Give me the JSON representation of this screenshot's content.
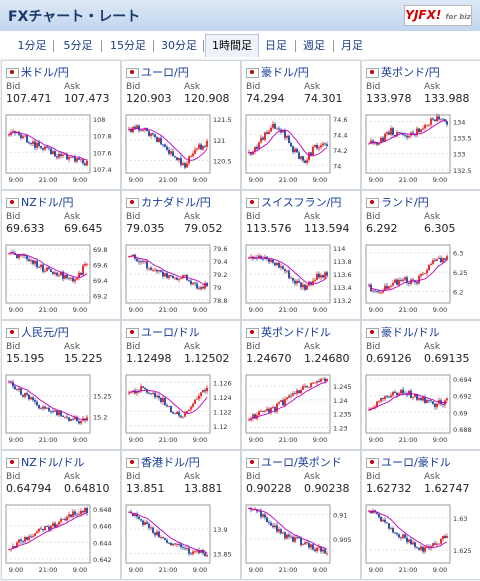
{
  "header": {
    "title": "FXチャート・レート",
    "logo_text": "YJFX!",
    "logo_sub": "for biz"
  },
  "tabs": [
    {
      "label": "1分足",
      "active": false
    },
    {
      "label": "5分足",
      "active": false
    },
    {
      "label": "15分足",
      "active": false
    },
    {
      "label": "30分足",
      "active": false
    },
    {
      "label": "1時間足",
      "active": true
    },
    {
      "label": "日足",
      "active": false
    },
    {
      "label": "週足",
      "active": false
    },
    {
      "label": "月足",
      "active": false
    }
  ],
  "labels": {
    "bid": "Bid",
    "ask": "Ask"
  },
  "colors": {
    "up": "#e00000",
    "down": "#002a8f",
    "ma": "#c000c0",
    "ma2": "#1a9cc0"
  },
  "pairs": [
    {
      "name": "米ドル/円",
      "bid": "107.471",
      "ask": "107.473",
      "yticks": [
        "108",
        "107.8",
        "107.6",
        "107.4"
      ],
      "xticks": [
        "9:00",
        "21:00",
        "9:00"
      ],
      "trend": [
        107.85,
        107.8,
        107.72,
        107.65,
        107.58,
        107.55,
        107.52,
        107.47
      ],
      "yrange": [
        107.35,
        108.05
      ]
    },
    {
      "name": "ユーロ/円",
      "bid": "120.903",
      "ask": "120.908",
      "yticks": [
        "121.5",
        "121",
        "120.5"
      ],
      "xticks": [
        "9:00",
        "21:00",
        "9:00"
      ],
      "trend": [
        121.2,
        121.3,
        121.1,
        120.9,
        120.6,
        120.4,
        120.8,
        120.9
      ],
      "yrange": [
        120.2,
        121.6
      ]
    },
    {
      "name": "豪ドル/円",
      "bid": "74.294",
      "ask": "74.301",
      "yticks": [
        "74.6",
        "74.4",
        "74.2",
        "74"
      ],
      "xticks": [
        "9:00",
        "21:00",
        "9:00"
      ],
      "trend": [
        74.15,
        74.3,
        74.5,
        74.45,
        74.2,
        74.05,
        74.25,
        74.29
      ],
      "yrange": [
        73.9,
        74.65
      ]
    },
    {
      "name": "英ポンド/円",
      "bid": "133.978",
      "ask": "133.988",
      "yticks": [
        "134",
        "133.5",
        "133",
        "132.5"
      ],
      "xticks": [
        "9:00",
        "21:00",
        "9:00"
      ],
      "trend": [
        133.3,
        133.4,
        133.7,
        133.5,
        133.6,
        133.9,
        134.1,
        133.98
      ],
      "yrange": [
        132.4,
        134.2
      ]
    },
    {
      "name": "NZドル/円",
      "bid": "69.633",
      "ask": "69.645",
      "yticks": [
        "69.8",
        "69.6",
        "69.4",
        "69.2"
      ],
      "xticks": [
        "9:00",
        "21:00",
        "9:00"
      ],
      "trend": [
        69.75,
        69.7,
        69.65,
        69.55,
        69.5,
        69.45,
        69.4,
        69.63
      ],
      "yrange": [
        69.1,
        69.85
      ]
    },
    {
      "name": "カナダドル/円",
      "bid": "79.035",
      "ask": "79.052",
      "yticks": [
        "79.6",
        "79.4",
        "79.2",
        "79",
        "78.8"
      ],
      "xticks": [
        "9:00",
        "21:00",
        "9:00"
      ],
      "trend": [
        79.5,
        79.4,
        79.3,
        79.2,
        79.1,
        79.15,
        79.0,
        79.03
      ],
      "yrange": [
        78.75,
        79.65
      ]
    },
    {
      "name": "スイスフラン/円",
      "bid": "113.576",
      "ask": "113.594",
      "yticks": [
        "114",
        "113.8",
        "113.6",
        "113.4",
        "113.2"
      ],
      "xticks": [
        "9:00",
        "21:00",
        "9:00"
      ],
      "trend": [
        113.9,
        113.85,
        113.8,
        113.7,
        113.5,
        113.4,
        113.55,
        113.58
      ],
      "yrange": [
        113.15,
        114.05
      ]
    },
    {
      "name": "ランド/円",
      "bid": "6.292",
      "ask": "6.305",
      "yticks": [
        "6.3",
        "6.25",
        "6.2"
      ],
      "xticks": [
        "9:00",
        "21:00",
        "9:00"
      ],
      "trend": [
        6.21,
        6.2,
        6.22,
        6.23,
        6.22,
        6.25,
        6.28,
        6.29
      ],
      "yrange": [
        6.17,
        6.32
      ]
    },
    {
      "name": "人民元/円",
      "bid": "15.195",
      "ask": "15.225",
      "yticks": [
        "15.25",
        "15.2"
      ],
      "xticks": [
        "9:00",
        "21:00",
        "9:00"
      ],
      "trend": [
        15.28,
        15.26,
        15.24,
        15.22,
        15.21,
        15.2,
        15.19,
        15.195
      ],
      "yrange": [
        15.16,
        15.3
      ]
    },
    {
      "name": "ユーロ/ドル",
      "bid": "1.12498",
      "ask": "1.12502",
      "yticks": [
        "1.126",
        "1.124",
        "1.122",
        "1.12"
      ],
      "xticks": [
        "9:00",
        "21:00",
        "9:00"
      ],
      "trend": [
        1.1245,
        1.125,
        1.1245,
        1.1235,
        1.122,
        1.1215,
        1.124,
        1.125
      ],
      "yrange": [
        1.119,
        1.127
      ]
    },
    {
      "name": "英ポンド/ドル",
      "bid": "1.24670",
      "ask": "1.24680",
      "yticks": [
        "1.245",
        "1.24",
        "1.235",
        "1.23"
      ],
      "xticks": [
        "9:00",
        "21:00",
        "9:00"
      ],
      "trend": [
        1.233,
        1.235,
        1.236,
        1.239,
        1.242,
        1.244,
        1.246,
        1.2467
      ],
      "yrange": [
        1.228,
        1.249
      ]
    },
    {
      "name": "豪ドル/ドル",
      "bid": "0.69126",
      "ask": "0.69135",
      "yticks": [
        "0.694",
        "0.692",
        "0.69",
        "0.688"
      ],
      "xticks": [
        "9:00",
        "21:00",
        "9:00"
      ],
      "trend": [
        0.6905,
        0.6915,
        0.692,
        0.6925,
        0.692,
        0.6915,
        0.691,
        0.6913
      ],
      "yrange": [
        0.6875,
        0.6945
      ]
    },
    {
      "name": "NZドル/ドル",
      "bid": "0.64794",
      "ask": "0.64810",
      "yticks": [
        "0.648",
        "0.646",
        "0.644",
        "0.642"
      ],
      "xticks": [
        "9:00",
        "21:00",
        "9:00"
      ],
      "trend": [
        0.6435,
        0.644,
        0.645,
        0.6455,
        0.646,
        0.6468,
        0.6475,
        0.6479
      ],
      "yrange": [
        0.6415,
        0.6485
      ]
    },
    {
      "name": "香港ドル/円",
      "bid": "13.851",
      "ask": "13.881",
      "yticks": [
        "13.9",
        "13.85"
      ],
      "xticks": [
        "9:00",
        "21:00",
        "9:00"
      ],
      "trend": [
        13.93,
        13.92,
        13.9,
        13.88,
        13.87,
        13.86,
        13.85,
        13.851
      ],
      "yrange": [
        13.83,
        13.95
      ]
    },
    {
      "name": "ユーロ/英ポンド",
      "bid": "0.90228",
      "ask": "0.90238",
      "yticks": [
        "0.91",
        "0.905"
      ],
      "xticks": [
        "9:00",
        "21:00",
        "9:00"
      ],
      "trend": [
        0.911,
        0.91,
        0.908,
        0.906,
        0.905,
        0.904,
        0.903,
        0.9023
      ],
      "yrange": [
        0.9,
        0.912
      ]
    },
    {
      "name": "ユーロ/豪ドル",
      "bid": "1.62732",
      "ask": "1.62747",
      "yticks": [
        "1.63",
        "1.625"
      ],
      "xticks": [
        "9:00",
        "21:00",
        "9:00"
      ],
      "trend": [
        1.631,
        1.63,
        1.628,
        1.627,
        1.626,
        1.625,
        1.626,
        1.6273
      ],
      "yrange": [
        1.623,
        1.632
      ]
    }
  ]
}
